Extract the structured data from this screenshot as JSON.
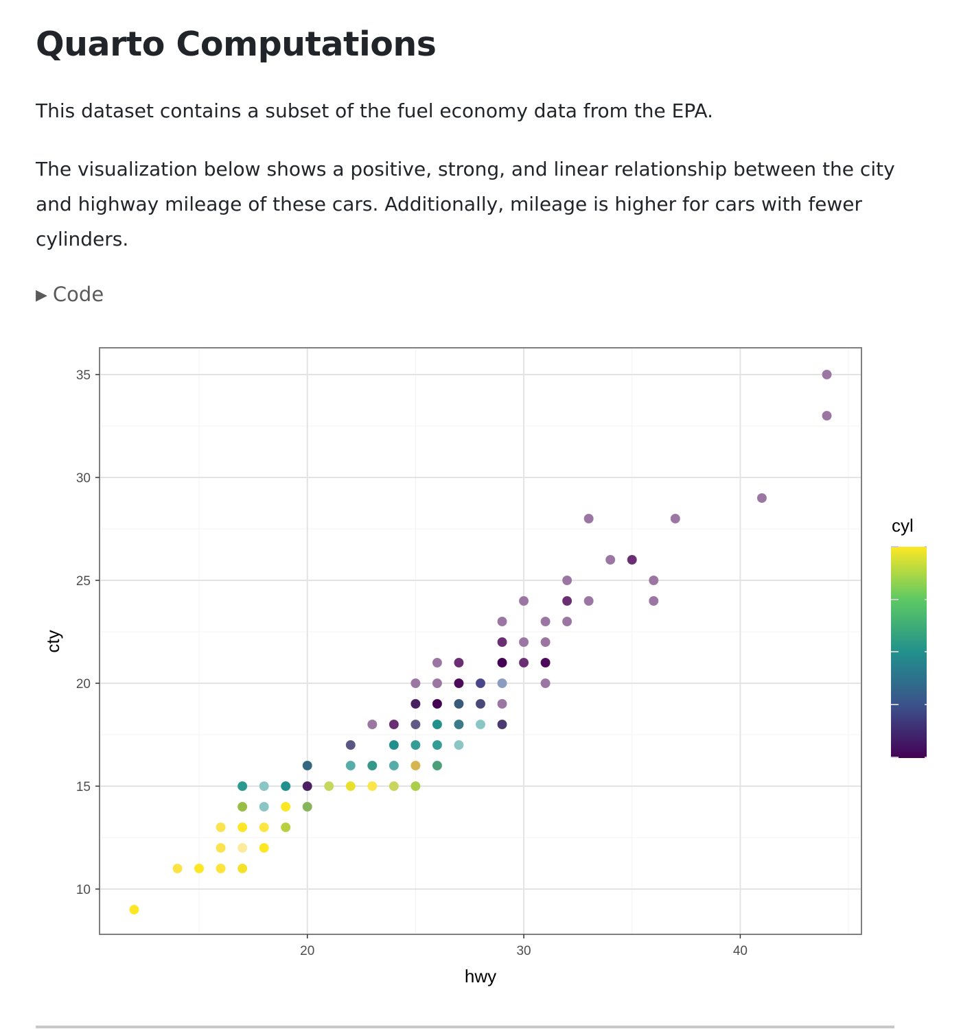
{
  "page": {
    "title": "Quarto Computations",
    "paragraphs": [
      "This dataset contains a subset of the fuel economy data from the EPA.",
      "The visualization below shows a positive, strong, and linear relationship between the city and highway mileage of these cars. Additionally, mileage is higher for cars with fewer cylinders."
    ],
    "code_toggle": {
      "icon": "triangle-right-icon",
      "label": "Code"
    }
  },
  "chart_data": {
    "type": "scatter",
    "xlabel": "hwy",
    "ylabel": "cty",
    "xlim": [
      10.4,
      45.6
    ],
    "ylim": [
      7.8,
      36.3
    ],
    "xticks": [
      "20",
      "30",
      "40"
    ],
    "yticks": [
      "10",
      "15",
      "20",
      "25",
      "30",
      "35"
    ],
    "grid": true,
    "legend": {
      "title": "cyl",
      "type": "colorbar",
      "palette": "viridis",
      "placement": "right",
      "colors": [
        "#440154",
        "#3b528b",
        "#21908c",
        "#5dc963",
        "#fde725"
      ]
    },
    "points": [
      [
        12,
        9,
        "#fde725"
      ],
      [
        14,
        11,
        "#fbe346"
      ],
      [
        15,
        11,
        "#fde725"
      ],
      [
        16,
        11,
        "#fde43b"
      ],
      [
        17,
        11,
        "#f4e12a"
      ],
      [
        16,
        12,
        "#fbe34f"
      ],
      [
        17,
        12,
        "#fbeb9a"
      ],
      [
        18,
        12,
        "#fde725"
      ],
      [
        16,
        13,
        "#fbe34f"
      ],
      [
        17,
        13,
        "#fde725"
      ],
      [
        18,
        13,
        "#fde63f"
      ],
      [
        19,
        13,
        "#b9cf3f"
      ],
      [
        17,
        14,
        "#98be45"
      ],
      [
        18,
        14,
        "#8cc6c4"
      ],
      [
        19,
        14,
        "#fde725"
      ],
      [
        20,
        14,
        "#86b55a"
      ],
      [
        17,
        15,
        "#2a9a8e"
      ],
      [
        18,
        15,
        "#8bc5c4"
      ],
      [
        19,
        15,
        "#21908c"
      ],
      [
        20,
        15,
        "#4c1e62"
      ],
      [
        21,
        15,
        "#c6d75e"
      ],
      [
        22,
        15,
        "#e9e02c"
      ],
      [
        23,
        15,
        "#fbe54b"
      ],
      [
        24,
        15,
        "#c8d65e"
      ],
      [
        25,
        15,
        "#aace4a"
      ],
      [
        20,
        16,
        "#346782"
      ],
      [
        22,
        16,
        "#56aca8"
      ],
      [
        23,
        16,
        "#33988a"
      ],
      [
        24,
        16,
        "#56aca8"
      ],
      [
        25,
        16,
        "#d6b450"
      ],
      [
        26,
        16,
        "#4b9e7a"
      ],
      [
        22,
        17,
        "#5a5684"
      ],
      [
        24,
        17,
        "#21908c"
      ],
      [
        25,
        17,
        "#349c95"
      ],
      [
        26,
        17,
        "#349c95"
      ],
      [
        27,
        17,
        "#8cc6c4"
      ],
      [
        23,
        18,
        "#9c76a3"
      ],
      [
        24,
        18,
        "#6a2e72"
      ],
      [
        25,
        18,
        "#605a86"
      ],
      [
        26,
        18,
        "#21908c"
      ],
      [
        27,
        18,
        "#3a7a8a"
      ],
      [
        28,
        18,
        "#8cc6c4"
      ],
      [
        29,
        18,
        "#4a3a70"
      ],
      [
        25,
        19,
        "#46205f"
      ],
      [
        26,
        19,
        "#440154"
      ],
      [
        27,
        19,
        "#3a5a7a"
      ],
      [
        28,
        19,
        "#4a4a7a"
      ],
      [
        29,
        19,
        "#9c76a3"
      ],
      [
        25,
        20,
        "#9c76a3"
      ],
      [
        26,
        20,
        "#9c76a3"
      ],
      [
        27,
        20,
        "#4c0a5a"
      ],
      [
        28,
        20,
        "#4a468a"
      ],
      [
        29,
        20,
        "#8a9cc0"
      ],
      [
        31,
        20,
        "#9c76a3"
      ],
      [
        26,
        21,
        "#9c76a3"
      ],
      [
        27,
        21,
        "#6a2e72"
      ],
      [
        29,
        21,
        "#440154"
      ],
      [
        30,
        21,
        "#6a2e72"
      ],
      [
        31,
        21,
        "#4c0a5a"
      ],
      [
        29,
        22,
        "#6a2e72"
      ],
      [
        30,
        22,
        "#9c76a3"
      ],
      [
        31,
        22,
        "#9c76a3"
      ],
      [
        29,
        23,
        "#9c76a3"
      ],
      [
        31,
        23,
        "#9c76a3"
      ],
      [
        32,
        23,
        "#9c76a3"
      ],
      [
        30,
        24,
        "#9c76a3"
      ],
      [
        32,
        24,
        "#6a2e72"
      ],
      [
        33,
        24,
        "#9c76a3"
      ],
      [
        36,
        24,
        "#9c76a3"
      ],
      [
        32,
        25,
        "#9c76a3"
      ],
      [
        36,
        25,
        "#9c76a3"
      ],
      [
        34,
        26,
        "#9c76a3"
      ],
      [
        35,
        26,
        "#6a2e72"
      ],
      [
        33,
        28,
        "#9c76a3"
      ],
      [
        37,
        28,
        "#9c76a3"
      ],
      [
        41,
        29,
        "#9c76a3"
      ],
      [
        44,
        33,
        "#9c76a3"
      ],
      [
        44,
        35,
        "#9c76a3"
      ]
    ]
  }
}
